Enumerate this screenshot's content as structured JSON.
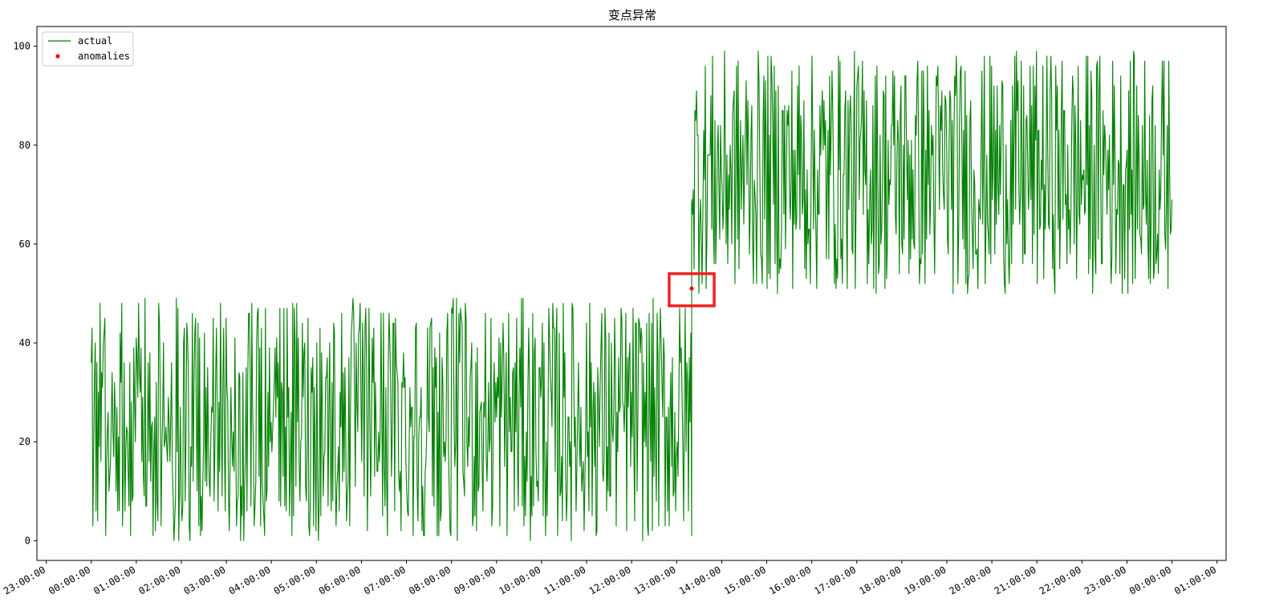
{
  "chart_data": {
    "type": "line",
    "title": "变点异常",
    "xlabel": "",
    "ylabel": "",
    "x_range": [
      "23:00:00",
      "01:00:00"
    ],
    "x_tick_labels": [
      "23:00:00",
      "00:00:00",
      "01:00:00",
      "02:00:00",
      "03:00:00",
      "04:00:00",
      "05:00:00",
      "06:00:00",
      "07:00:00",
      "08:00:00",
      "09:00:00",
      "10:00:00",
      "11:00:00",
      "12:00:00",
      "13:00:00",
      "14:00:00",
      "15:00:00",
      "16:00:00",
      "17:00:00",
      "18:00:00",
      "19:00:00",
      "20:00:00",
      "21:00:00",
      "22:00:00",
      "23:00:00",
      "00:00:00",
      "01:00:00"
    ],
    "ylim": [
      -4,
      104
    ],
    "y_ticks": [
      0,
      20,
      40,
      60,
      80,
      100
    ],
    "grid": false,
    "legend_position": "top-left",
    "series": [
      {
        "name": "actual",
        "color": "#008000",
        "segments": [
          {
            "x_start": "00:00:00",
            "x_end": "13:20:00",
            "y_min": 0,
            "y_max": 49
          },
          {
            "x_start": "13:20:00",
            "x_end": "00:00:00",
            "y_min": 50,
            "y_max": 99
          }
        ],
        "changepoint_x": "13:20:00",
        "last_value": 69
      },
      {
        "name": "anomalies",
        "color": "#ff0000",
        "points": [
          {
            "x": "13:20:00",
            "y": 51
          }
        ]
      }
    ],
    "highlight_box": {
      "x_start": "12:50:00",
      "x_end": "13:50:00",
      "y_min": 47.5,
      "y_max": 54,
      "color": "#ee2222"
    }
  }
}
